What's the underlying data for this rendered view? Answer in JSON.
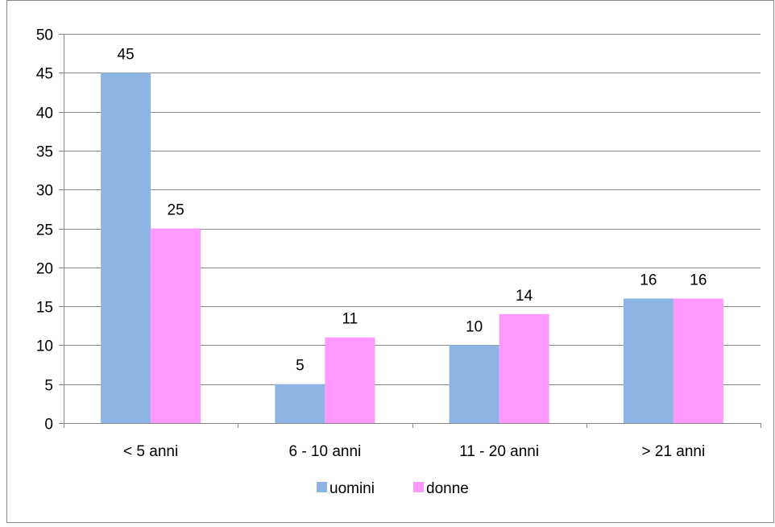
{
  "chart_data": {
    "type": "bar",
    "categories": [
      "< 5 anni",
      "6 - 10 anni",
      "11 - 20 anni",
      "> 21 anni"
    ],
    "series": [
      {
        "name": "uomini",
        "values": [
          45,
          5,
          10,
          16
        ],
        "color": "#8EB4E3"
      },
      {
        "name": "donne",
        "values": [
          25,
          11,
          14,
          16
        ],
        "color": "#FF99FF"
      }
    ],
    "ylim": [
      0,
      50
    ],
    "yticks": [
      0,
      5,
      10,
      15,
      20,
      25,
      30,
      35,
      40,
      45,
      50
    ],
    "grid": true,
    "data_labels": true,
    "legend_position": "bottom"
  }
}
